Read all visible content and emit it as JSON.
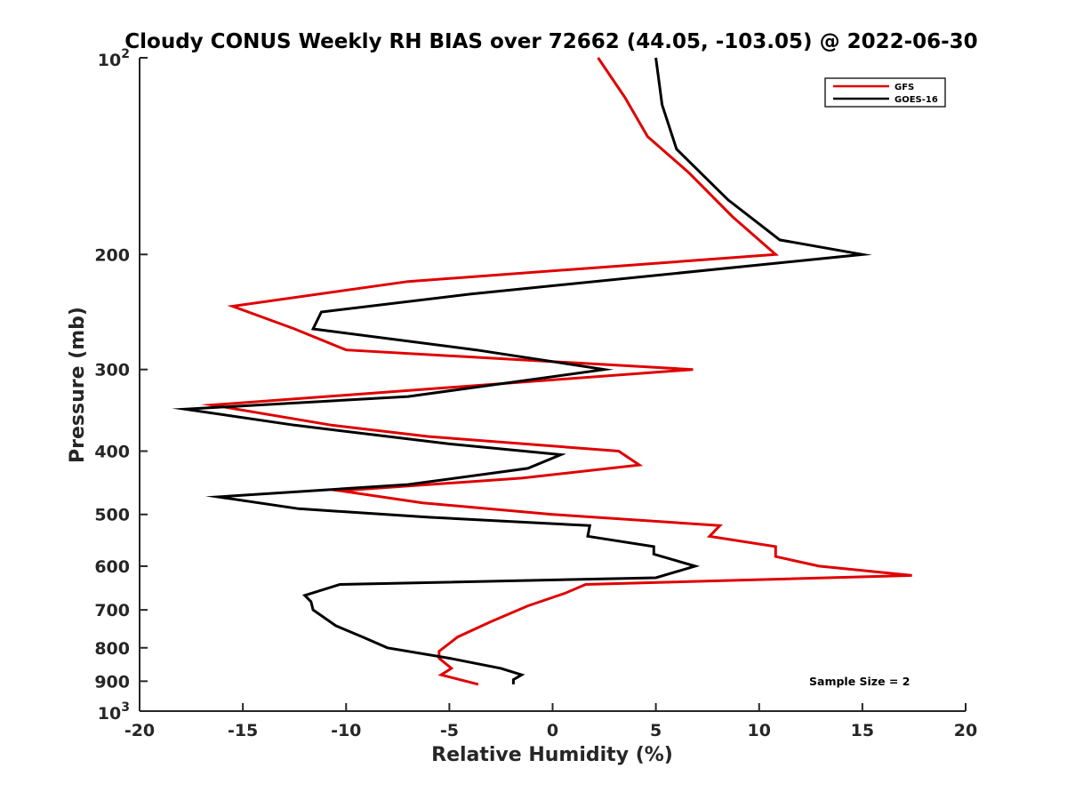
{
  "chart_data": {
    "type": "line",
    "title": "Cloudy CONUS Weekly RH BIAS over 72662 (44.05, -103.05) @ 2022-06-30",
    "xlabel": "Relative Humidity (%)",
    "ylabel": "Pressure (mb)",
    "xlim": [
      -20,
      20
    ],
    "ylim": [
      100,
      1000
    ],
    "y_scale": "log",
    "y_reversed": true,
    "grid": false,
    "legend_position": "top-right",
    "x_ticks": [
      -20,
      -15,
      -10,
      -5,
      0,
      5,
      10,
      15,
      20
    ],
    "x_tick_labels": [
      "-20",
      "-15",
      "-10",
      "-5",
      "0",
      "5",
      "10",
      "15",
      "20"
    ],
    "y_ticks": [
      {
        "value": 100,
        "base": "10",
        "exp": "2"
      },
      {
        "value": 200,
        "label": "200"
      },
      {
        "value": 300,
        "label": "300"
      },
      {
        "value": 400,
        "label": "400"
      },
      {
        "value": 500,
        "label": "500"
      },
      {
        "value": 600,
        "label": "600"
      },
      {
        "value": 700,
        "label": "700"
      },
      {
        "value": 800,
        "label": "800"
      },
      {
        "value": 900,
        "label": "900"
      },
      {
        "value": 1000,
        "base": "10",
        "exp": "3"
      }
    ],
    "annotation": "Sample Size = 2",
    "series": [
      {
        "name": "GFS",
        "color": "#e00000",
        "points": [
          [
            2.2,
            100
          ],
          [
            3.5,
            115
          ],
          [
            4.6,
            132
          ],
          [
            6.6,
            150
          ],
          [
            8.7,
            175
          ],
          [
            10.8,
            200
          ],
          [
            -7.0,
            220
          ],
          [
            -15.5,
            240
          ],
          [
            -12.5,
            260
          ],
          [
            -10.0,
            280
          ],
          [
            6.8,
            300
          ],
          [
            -16.5,
            340
          ],
          [
            -10.7,
            365
          ],
          [
            -6.0,
            380
          ],
          [
            3.2,
            400
          ],
          [
            4.2,
            420
          ],
          [
            -1.5,
            440
          ],
          [
            -10.3,
            460
          ],
          [
            -6.3,
            480
          ],
          [
            0.0,
            500
          ],
          [
            8.1,
            520
          ],
          [
            7.6,
            540
          ],
          [
            10.8,
            560
          ],
          [
            10.8,
            580
          ],
          [
            12.9,
            600
          ],
          [
            17.4,
            620
          ],
          [
            1.6,
            640
          ],
          [
            0.6,
            660
          ],
          [
            -1.2,
            690
          ],
          [
            -3.0,
            730
          ],
          [
            -4.6,
            770
          ],
          [
            -5.5,
            810
          ],
          [
            -5.5,
            830
          ],
          [
            -4.9,
            860
          ],
          [
            -5.4,
            880
          ],
          [
            -3.6,
            910
          ]
        ]
      },
      {
        "name": "GOES-16",
        "color": "#000000",
        "points": [
          [
            5.0,
            100
          ],
          [
            5.3,
            118
          ],
          [
            6.0,
            138
          ],
          [
            8.5,
            165
          ],
          [
            11.0,
            190
          ],
          [
            15.0,
            200
          ],
          [
            -4.0,
            230
          ],
          [
            -11.2,
            245
          ],
          [
            -11.6,
            260
          ],
          [
            -3.7,
            280
          ],
          [
            2.5,
            300
          ],
          [
            -7.0,
            330
          ],
          [
            -17.8,
            345
          ],
          [
            -12.5,
            365
          ],
          [
            -5.0,
            390
          ],
          [
            0.4,
            405
          ],
          [
            -1.2,
            425
          ],
          [
            -7.0,
            450
          ],
          [
            -16.2,
            470
          ],
          [
            -12.3,
            490
          ],
          [
            -6.0,
            505
          ],
          [
            1.8,
            520
          ],
          [
            1.7,
            540
          ],
          [
            4.9,
            560
          ],
          [
            4.9,
            575
          ],
          [
            6.9,
            600
          ],
          [
            5.0,
            625
          ],
          [
            -10.3,
            640
          ],
          [
            -12.0,
            665
          ],
          [
            -11.7,
            680
          ],
          [
            -11.6,
            700
          ],
          [
            -10.5,
            740
          ],
          [
            -9.2,
            770
          ],
          [
            -8.0,
            800
          ],
          [
            -5.0,
            830
          ],
          [
            -2.5,
            860
          ],
          [
            -1.5,
            880
          ],
          [
            -1.9,
            895
          ],
          [
            -1.9,
            910
          ]
        ]
      }
    ]
  }
}
